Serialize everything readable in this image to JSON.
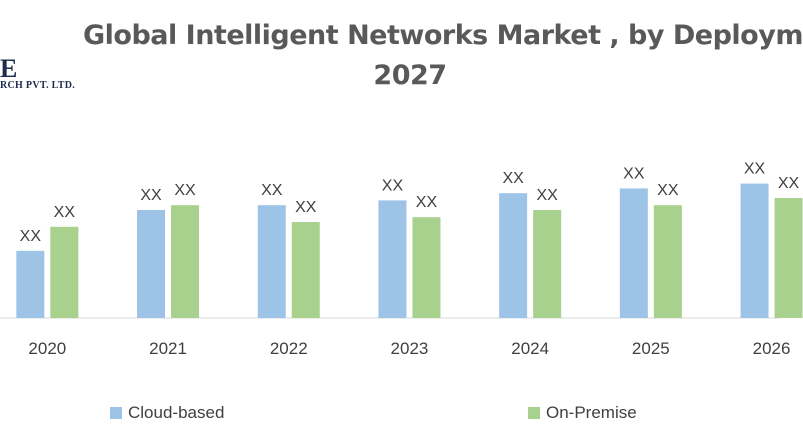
{
  "chart_data": {
    "type": "bar",
    "title_line1": "Global Intelligent Networks Market , by Deploym",
    "title_line2": "2027",
    "logo": {
      "mark": "E",
      "sub": "RCH PVT. LTD."
    },
    "categories": [
      "2020",
      "2021",
      "2022",
      "2023",
      "2024",
      "2025",
      "2026"
    ],
    "series": [
      {
        "name": "Cloud-based",
        "color": "#9dc3e6",
        "values": [
          2.8,
          4.5,
          4.7,
          4.9,
          5.2,
          5.4,
          5.6
        ],
        "labels": [
          "XX",
          "XX",
          "XX",
          "XX",
          "XX",
          "XX",
          "XX"
        ]
      },
      {
        "name": "On-Premise",
        "color": "#a9d18e",
        "values": [
          3.8,
          4.7,
          4.0,
          4.2,
          4.5,
          4.7,
          5.0
        ],
        "labels": [
          "XX",
          "XX",
          "XX",
          "XX",
          "XX",
          "XX",
          "XX"
        ]
      }
    ],
    "ylim": [
      0,
      10
    ],
    "grid": false,
    "legend_position": "bottom"
  }
}
